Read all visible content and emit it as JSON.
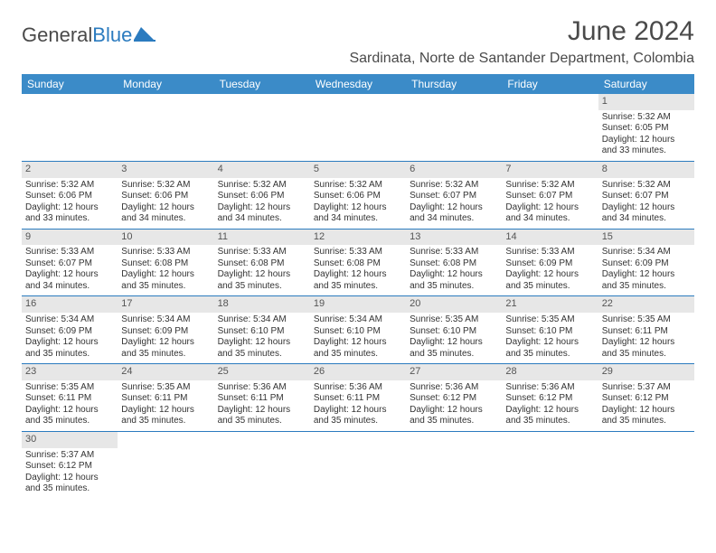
{
  "logo": {
    "text_left": "General",
    "text_right": "Blue",
    "dark_color": "#4a4a4a",
    "blue_color": "#2b7bbf"
  },
  "title": "June 2024",
  "location": "Sardinata, Norte de Santander Department, Colombia",
  "colors": {
    "header_bg": "#3b8bc8",
    "header_text": "#ffffff",
    "daynum_bg": "#e7e7e7",
    "daynum_text": "#555555",
    "body_text": "#333333",
    "row_border": "#2b7bbf",
    "page_bg": "#ffffff"
  },
  "day_labels": [
    "Sunday",
    "Monday",
    "Tuesday",
    "Wednesday",
    "Thursday",
    "Friday",
    "Saturday"
  ],
  "weeks": [
    [
      null,
      null,
      null,
      null,
      null,
      null,
      {
        "n": "1",
        "sr": "Sunrise: 5:32 AM",
        "ss": "Sunset: 6:05 PM",
        "d1": "Daylight: 12 hours",
        "d2": "and 33 minutes."
      }
    ],
    [
      {
        "n": "2",
        "sr": "Sunrise: 5:32 AM",
        "ss": "Sunset: 6:06 PM",
        "d1": "Daylight: 12 hours",
        "d2": "and 33 minutes."
      },
      {
        "n": "3",
        "sr": "Sunrise: 5:32 AM",
        "ss": "Sunset: 6:06 PM",
        "d1": "Daylight: 12 hours",
        "d2": "and 34 minutes."
      },
      {
        "n": "4",
        "sr": "Sunrise: 5:32 AM",
        "ss": "Sunset: 6:06 PM",
        "d1": "Daylight: 12 hours",
        "d2": "and 34 minutes."
      },
      {
        "n": "5",
        "sr": "Sunrise: 5:32 AM",
        "ss": "Sunset: 6:06 PM",
        "d1": "Daylight: 12 hours",
        "d2": "and 34 minutes."
      },
      {
        "n": "6",
        "sr": "Sunrise: 5:32 AM",
        "ss": "Sunset: 6:07 PM",
        "d1": "Daylight: 12 hours",
        "d2": "and 34 minutes."
      },
      {
        "n": "7",
        "sr": "Sunrise: 5:32 AM",
        "ss": "Sunset: 6:07 PM",
        "d1": "Daylight: 12 hours",
        "d2": "and 34 minutes."
      },
      {
        "n": "8",
        "sr": "Sunrise: 5:32 AM",
        "ss": "Sunset: 6:07 PM",
        "d1": "Daylight: 12 hours",
        "d2": "and 34 minutes."
      }
    ],
    [
      {
        "n": "9",
        "sr": "Sunrise: 5:33 AM",
        "ss": "Sunset: 6:07 PM",
        "d1": "Daylight: 12 hours",
        "d2": "and 34 minutes."
      },
      {
        "n": "10",
        "sr": "Sunrise: 5:33 AM",
        "ss": "Sunset: 6:08 PM",
        "d1": "Daylight: 12 hours",
        "d2": "and 35 minutes."
      },
      {
        "n": "11",
        "sr": "Sunrise: 5:33 AM",
        "ss": "Sunset: 6:08 PM",
        "d1": "Daylight: 12 hours",
        "d2": "and 35 minutes."
      },
      {
        "n": "12",
        "sr": "Sunrise: 5:33 AM",
        "ss": "Sunset: 6:08 PM",
        "d1": "Daylight: 12 hours",
        "d2": "and 35 minutes."
      },
      {
        "n": "13",
        "sr": "Sunrise: 5:33 AM",
        "ss": "Sunset: 6:08 PM",
        "d1": "Daylight: 12 hours",
        "d2": "and 35 minutes."
      },
      {
        "n": "14",
        "sr": "Sunrise: 5:33 AM",
        "ss": "Sunset: 6:09 PM",
        "d1": "Daylight: 12 hours",
        "d2": "and 35 minutes."
      },
      {
        "n": "15",
        "sr": "Sunrise: 5:34 AM",
        "ss": "Sunset: 6:09 PM",
        "d1": "Daylight: 12 hours",
        "d2": "and 35 minutes."
      }
    ],
    [
      {
        "n": "16",
        "sr": "Sunrise: 5:34 AM",
        "ss": "Sunset: 6:09 PM",
        "d1": "Daylight: 12 hours",
        "d2": "and 35 minutes."
      },
      {
        "n": "17",
        "sr": "Sunrise: 5:34 AM",
        "ss": "Sunset: 6:09 PM",
        "d1": "Daylight: 12 hours",
        "d2": "and 35 minutes."
      },
      {
        "n": "18",
        "sr": "Sunrise: 5:34 AM",
        "ss": "Sunset: 6:10 PM",
        "d1": "Daylight: 12 hours",
        "d2": "and 35 minutes."
      },
      {
        "n": "19",
        "sr": "Sunrise: 5:34 AM",
        "ss": "Sunset: 6:10 PM",
        "d1": "Daylight: 12 hours",
        "d2": "and 35 minutes."
      },
      {
        "n": "20",
        "sr": "Sunrise: 5:35 AM",
        "ss": "Sunset: 6:10 PM",
        "d1": "Daylight: 12 hours",
        "d2": "and 35 minutes."
      },
      {
        "n": "21",
        "sr": "Sunrise: 5:35 AM",
        "ss": "Sunset: 6:10 PM",
        "d1": "Daylight: 12 hours",
        "d2": "and 35 minutes."
      },
      {
        "n": "22",
        "sr": "Sunrise: 5:35 AM",
        "ss": "Sunset: 6:11 PM",
        "d1": "Daylight: 12 hours",
        "d2": "and 35 minutes."
      }
    ],
    [
      {
        "n": "23",
        "sr": "Sunrise: 5:35 AM",
        "ss": "Sunset: 6:11 PM",
        "d1": "Daylight: 12 hours",
        "d2": "and 35 minutes."
      },
      {
        "n": "24",
        "sr": "Sunrise: 5:35 AM",
        "ss": "Sunset: 6:11 PM",
        "d1": "Daylight: 12 hours",
        "d2": "and 35 minutes."
      },
      {
        "n": "25",
        "sr": "Sunrise: 5:36 AM",
        "ss": "Sunset: 6:11 PM",
        "d1": "Daylight: 12 hours",
        "d2": "and 35 minutes."
      },
      {
        "n": "26",
        "sr": "Sunrise: 5:36 AM",
        "ss": "Sunset: 6:11 PM",
        "d1": "Daylight: 12 hours",
        "d2": "and 35 minutes."
      },
      {
        "n": "27",
        "sr": "Sunrise: 5:36 AM",
        "ss": "Sunset: 6:12 PM",
        "d1": "Daylight: 12 hours",
        "d2": "and 35 minutes."
      },
      {
        "n": "28",
        "sr": "Sunrise: 5:36 AM",
        "ss": "Sunset: 6:12 PM",
        "d1": "Daylight: 12 hours",
        "d2": "and 35 minutes."
      },
      {
        "n": "29",
        "sr": "Sunrise: 5:37 AM",
        "ss": "Sunset: 6:12 PM",
        "d1": "Daylight: 12 hours",
        "d2": "and 35 minutes."
      }
    ],
    [
      {
        "n": "30",
        "sr": "Sunrise: 5:37 AM",
        "ss": "Sunset: 6:12 PM",
        "d1": "Daylight: 12 hours",
        "d2": "and 35 minutes."
      },
      null,
      null,
      null,
      null,
      null,
      null
    ]
  ]
}
